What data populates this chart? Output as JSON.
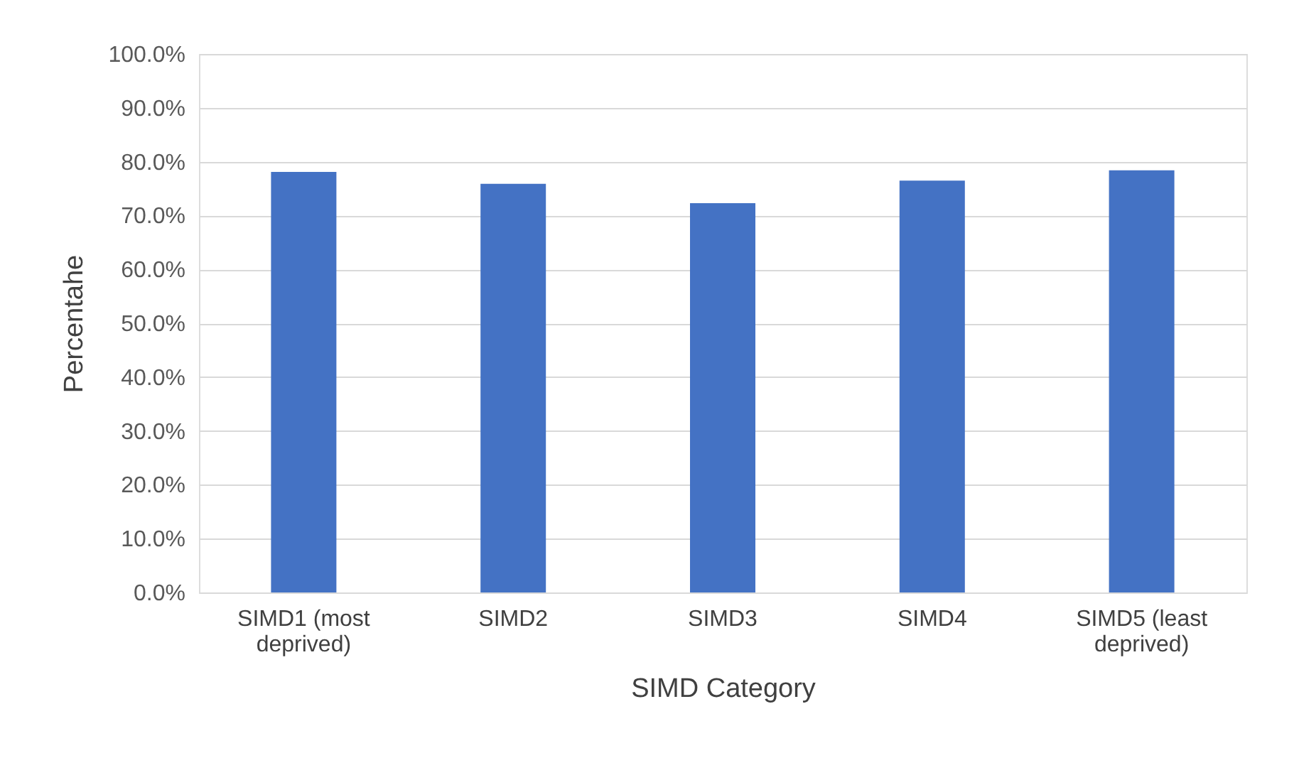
{
  "chart_data": {
    "type": "bar",
    "xlabel": "SIMD Category",
    "ylabel": "Percentahe",
    "categories": [
      "SIMD1 (most deprived)",
      "SIMD2",
      "SIMD3",
      "SIMD4",
      "SIMD5 (least deprived)"
    ],
    "values": [
      78.1,
      75.9,
      72.3,
      76.5,
      78.4
    ],
    "color": "#4472c4",
    "ylim": [
      0,
      100
    ],
    "yticks": [
      {
        "value": 0,
        "label": "0.0%"
      },
      {
        "value": 10,
        "label": "10.0%"
      },
      {
        "value": 20,
        "label": "20.0%"
      },
      {
        "value": 30,
        "label": "30.0%"
      },
      {
        "value": 40,
        "label": "40.0%"
      },
      {
        "value": 50,
        "label": "50.0%"
      },
      {
        "value": 60,
        "label": "60.0%"
      },
      {
        "value": 70,
        "label": "70.0%"
      },
      {
        "value": 80,
        "label": "80.0%"
      },
      {
        "value": 90,
        "label": "90.0%"
      },
      {
        "value": 100,
        "label": "100.0%"
      }
    ],
    "grid": "y"
  }
}
